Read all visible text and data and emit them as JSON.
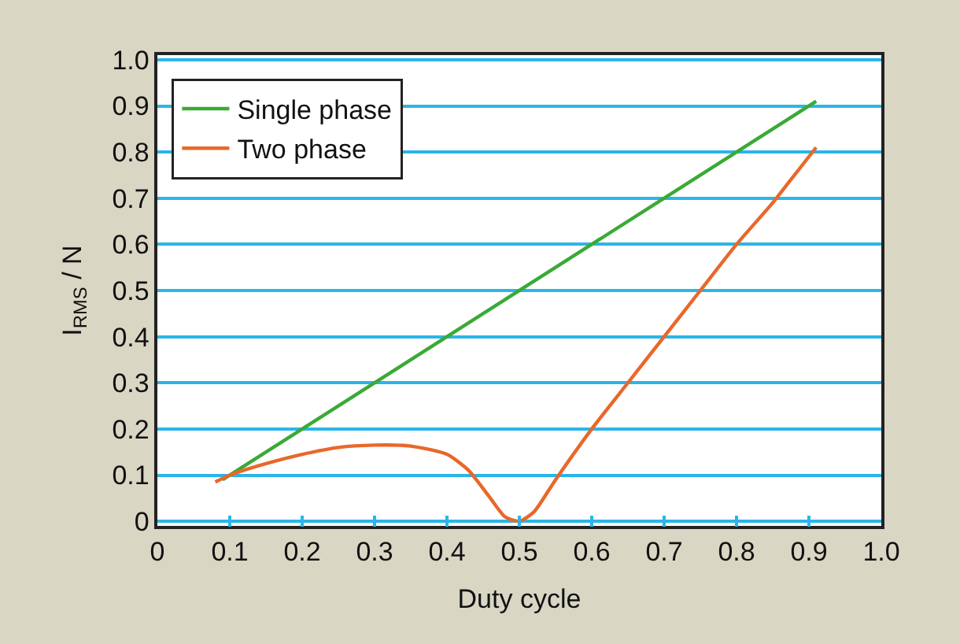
{
  "chart_data": {
    "type": "line",
    "xlabel": "Duty cycle",
    "ylabel": "I$_{RMS}$ / N",
    "xlim": [
      0,
      1.0
    ],
    "xticks": [
      0,
      0.1,
      0.2,
      0.3,
      0.4,
      0.5,
      0.6,
      0.7,
      0.8,
      0.9,
      {
        "value": 1.0,
        "label": "1.0"
      }
    ],
    "ylim": [
      -0.01,
      1.01
    ],
    "yticks": [
      0,
      0.1,
      0.2,
      0.3,
      0.4,
      0.5,
      0.6,
      0.7,
      0.8,
      0.9,
      {
        "value": 1.0,
        "label": "1.0"
      }
    ],
    "grid": "y",
    "legend": "top left",
    "line_style": "solid",
    "marker": "none",
    "series": [
      {
        "name": "Single phase",
        "color": "#3aaa35",
        "x": [
          0.09,
          0.91
        ],
        "values": [
          0.09,
          0.91
        ]
      },
      {
        "name": "Two phase",
        "color": "#e8682a",
        "x": [
          0.08,
          0.1,
          0.15,
          0.2,
          0.25,
          0.3,
          0.35,
          0.4,
          0.43,
          0.46,
          0.48,
          0.5,
          0.52,
          0.55,
          0.6,
          0.65,
          0.7,
          0.75,
          0.8,
          0.85,
          0.87,
          0.91
        ],
        "values": [
          0.085,
          0.1,
          0.125,
          0.145,
          0.16,
          0.165,
          0.163,
          0.145,
          0.11,
          0.05,
          0.01,
          0,
          0.02,
          0.09,
          0.2,
          0.3,
          0.4,
          0.5,
          0.6,
          0.69,
          0.73,
          0.81
        ]
      }
    ]
  }
}
